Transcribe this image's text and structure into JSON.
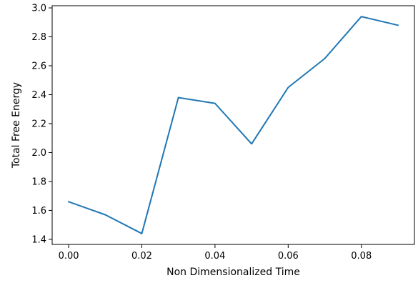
{
  "chart_data": {
    "type": "line",
    "title": "",
    "xlabel": "Non Dimensionalized Time",
    "ylabel": "Total Free Energy",
    "xlim": [
      -0.0045,
      0.0945
    ],
    "ylim": [
      1.365,
      3.015
    ],
    "grid": false,
    "legend": "none",
    "xticks": [
      0.0,
      0.02,
      0.04,
      0.06,
      0.08
    ],
    "xtick_labels": [
      "0.00",
      "0.02",
      "0.04",
      "0.06",
      "0.08"
    ],
    "yticks": [
      1.4,
      1.6,
      1.8,
      2.0,
      2.2,
      2.4,
      2.6,
      2.8,
      3.0
    ],
    "ytick_labels": [
      "1.4",
      "1.6",
      "1.8",
      "2.0",
      "2.2",
      "2.4",
      "2.6",
      "2.8",
      "3.0"
    ],
    "series": [
      {
        "color": "#1f77b4",
        "x": [
          0.0,
          0.01,
          0.02,
          0.03,
          0.04,
          0.05,
          0.06,
          0.07,
          0.08,
          0.09
        ],
        "y": [
          1.66,
          1.57,
          1.44,
          2.38,
          2.34,
          2.06,
          2.45,
          2.65,
          2.94,
          2.88
        ]
      }
    ]
  }
}
